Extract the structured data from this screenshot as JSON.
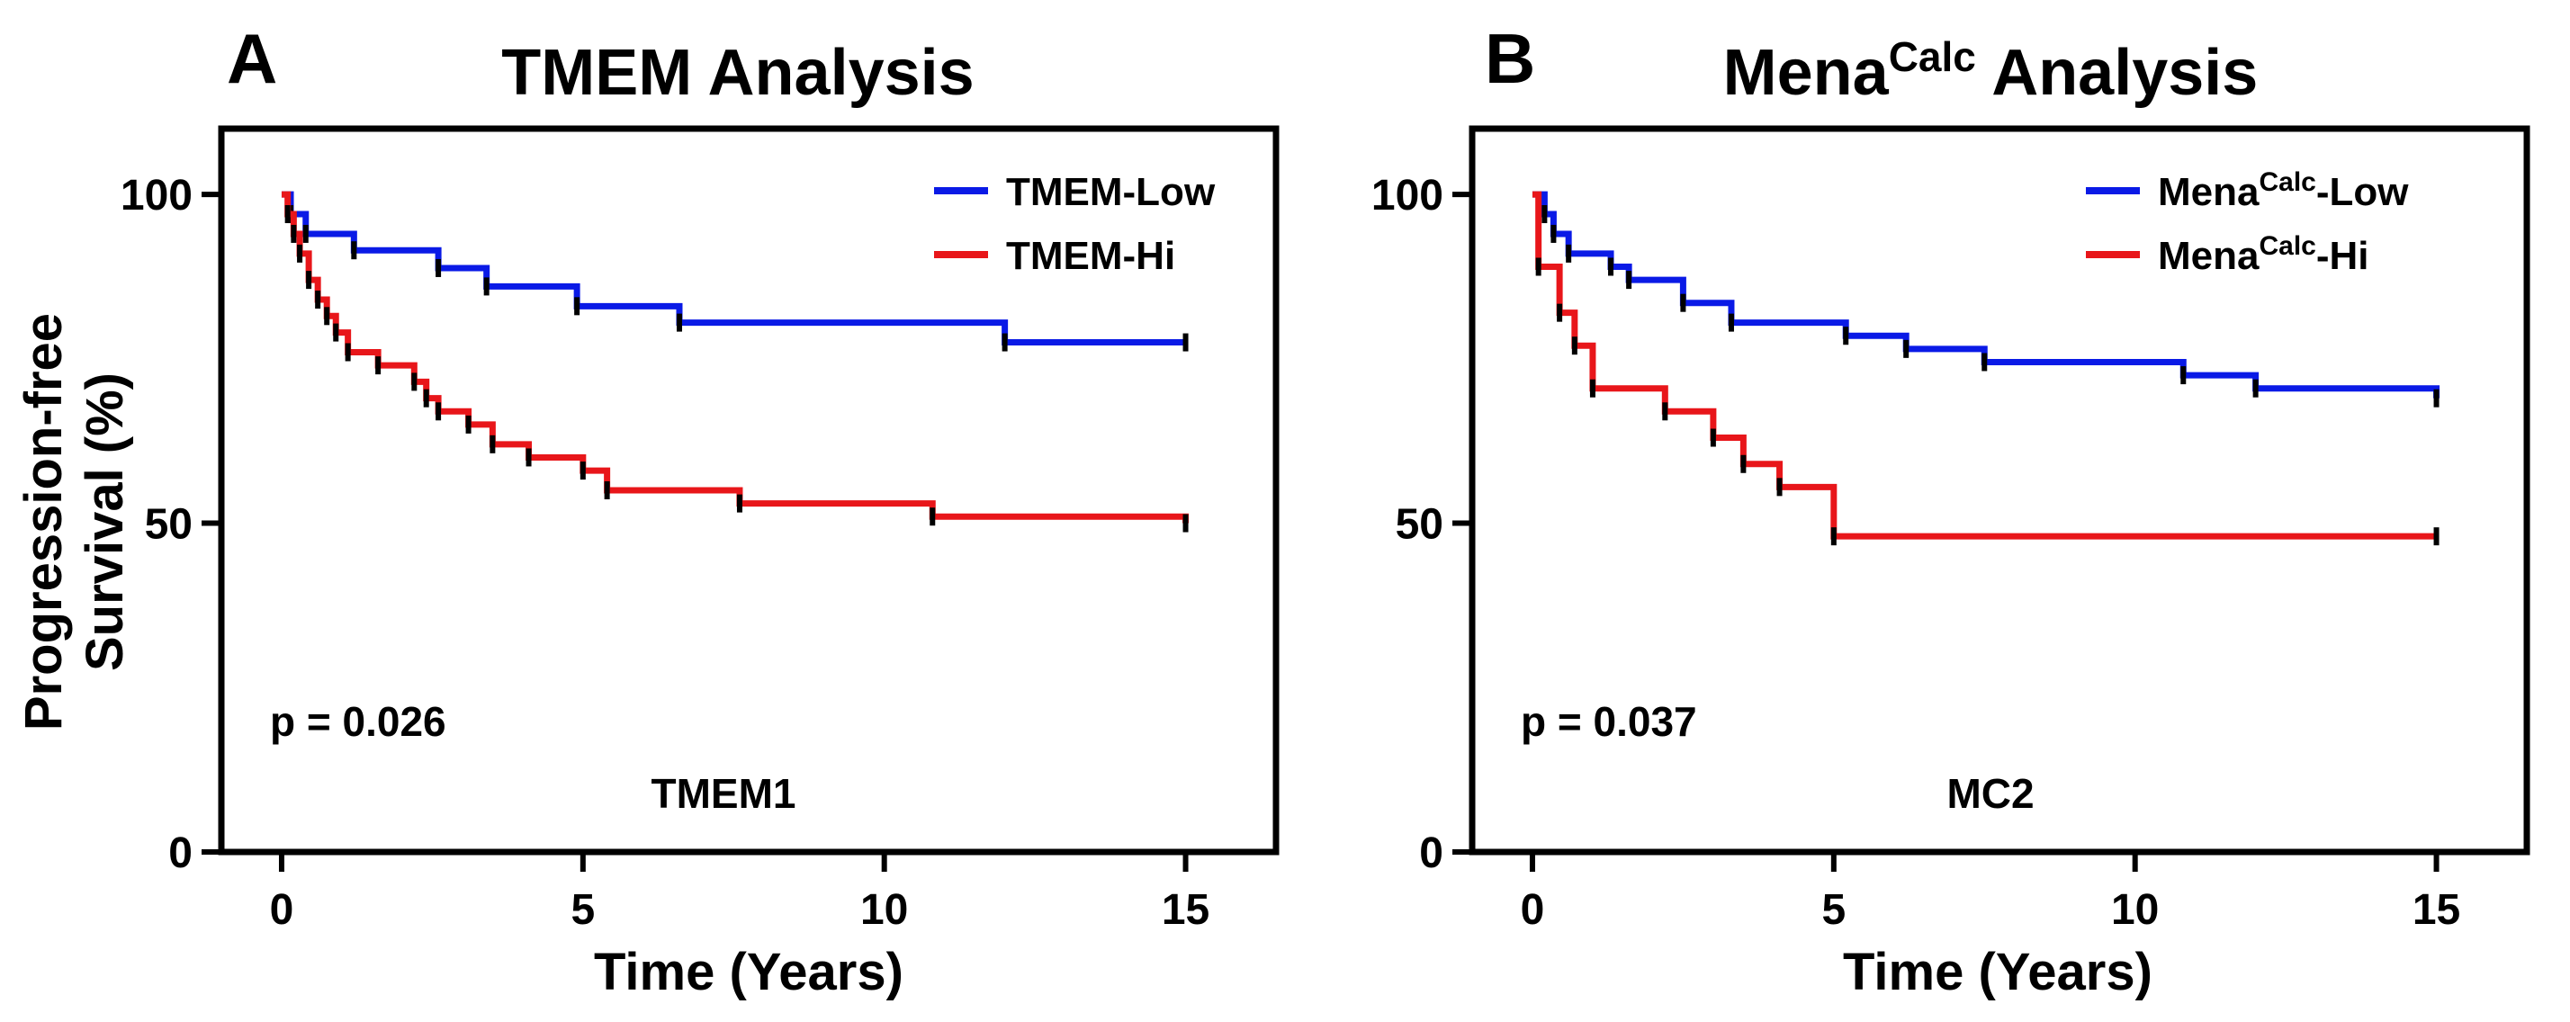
{
  "figure": {
    "ylabel_line1": "Progression-free",
    "ylabel_line2": "Survival (%)"
  },
  "chart_data": [
    {
      "panel": "A",
      "type": "line",
      "subtype": "kaplan-meier",
      "title": "TMEM Analysis",
      "title_base": "TMEM Analysis",
      "title_sup": "",
      "title_tail": "",
      "xlabel": "Time (Years)",
      "ylabel": "Progression-free Survival (%)",
      "xlim": [
        -1,
        16.5
      ],
      "ylim": [
        0,
        110
      ],
      "xticks": [
        0,
        5,
        10,
        15
      ],
      "yticks": [
        0,
        50,
        100
      ],
      "legend_position": "top-right",
      "p_value": "p = 0.026",
      "cohort": "TMEM1",
      "series": [
        {
          "name": "TMEM-Low",
          "name_base": "TMEM",
          "name_sup": "",
          "name_tail": "-Low",
          "color": "#0a1ae6",
          "x": [
            0,
            0.15,
            0.4,
            1.2,
            2.6,
            3.4,
            4.9,
            6.6,
            12.0,
            15.0
          ],
          "y": [
            100,
            97,
            94,
            91.5,
            88.8,
            86,
            83,
            80.5,
            77.5,
            77.5
          ]
        },
        {
          "name": "TMEM-Hi",
          "name_base": "TMEM",
          "name_sup": "",
          "name_tail": "-Hi",
          "color": "#e8161a",
          "x": [
            0,
            0.1,
            0.2,
            0.3,
            0.45,
            0.6,
            0.75,
            0.9,
            1.1,
            1.6,
            2.2,
            2.4,
            2.6,
            3.1,
            3.5,
            4.1,
            5.0,
            5.4,
            7.6,
            10.8,
            15.0
          ],
          "y": [
            100,
            97,
            94,
            91,
            87,
            84,
            81.5,
            79,
            76,
            74,
            71.5,
            69,
            67,
            65,
            62,
            60,
            58,
            55,
            53,
            51,
            50
          ]
        }
      ]
    },
    {
      "panel": "B",
      "type": "line",
      "subtype": "kaplan-meier",
      "title": "MenaCalc Analysis",
      "title_base": "Mena",
      "title_sup": "Calc",
      "title_tail": " Analysis",
      "xlabel": "Time (Years)",
      "ylabel": "Progression-free Survival (%)",
      "xlim": [
        -1,
        16.5
      ],
      "ylim": [
        0,
        110
      ],
      "xticks": [
        0,
        5,
        10,
        15
      ],
      "yticks": [
        0,
        50,
        100
      ],
      "legend_position": "top-right",
      "p_value": "p = 0.037",
      "cohort": "MC2",
      "series": [
        {
          "name": "MenaCalc-Low",
          "name_base": "Mena",
          "name_sup": "Calc",
          "name_tail": "-Low",
          "color": "#0a1ae6",
          "x": [
            0,
            0.2,
            0.35,
            0.6,
            1.3,
            1.6,
            2.5,
            3.3,
            5.2,
            6.2,
            7.5,
            10.8,
            12.0,
            15.0
          ],
          "y": [
            100,
            97,
            94,
            91,
            89,
            87,
            83.5,
            80.5,
            78.5,
            76.5,
            74.5,
            72.5,
            70.5,
            69
          ],
          "name_full": "MenaCalc-Low"
        },
        {
          "name": "MenaCalc-Hi",
          "name_base": "Mena",
          "name_sup": "Calc",
          "name_tail": "-Hi",
          "color": "#e8161a",
          "x": [
            0,
            0.1,
            0.45,
            0.7,
            1.0,
            2.2,
            3.0,
            3.5,
            4.1,
            5.0,
            15.0
          ],
          "y": [
            100,
            89,
            82,
            77,
            70.5,
            67,
            63,
            59,
            55.5,
            48,
            48
          ]
        }
      ]
    }
  ]
}
